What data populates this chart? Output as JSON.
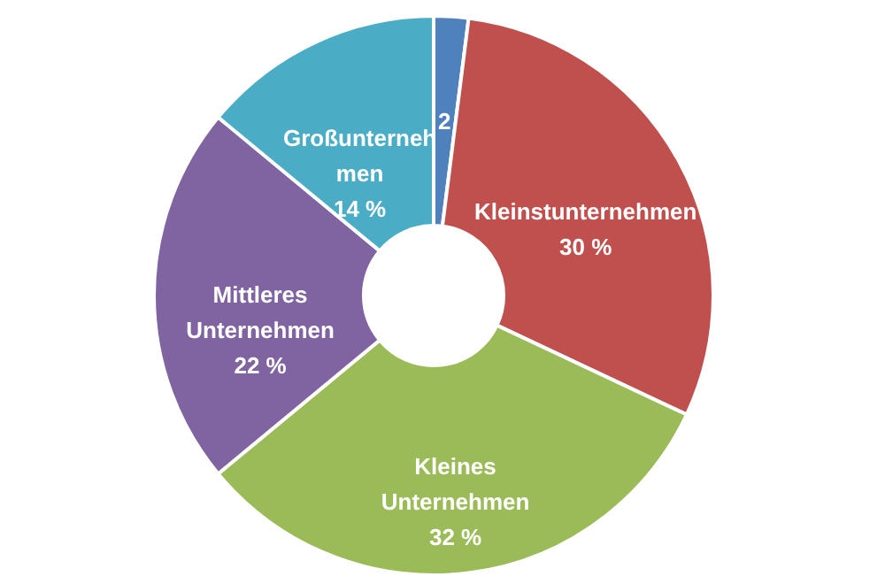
{
  "chart_data": {
    "type": "donut",
    "categories": [
      null,
      "Kleinstunternehmen",
      "Kleines Unternehmen",
      "Mittleres Unternehmen",
      "Großunternehmen"
    ],
    "values": [
      2,
      30,
      32,
      22,
      14
    ],
    "value_labels": [
      "2",
      "30 %",
      "32 %",
      "22 %",
      "14 %"
    ],
    "colors": [
      "#4f81bd",
      "#c0504d",
      "#9bbb59",
      "#8064a2",
      "#4bacc6"
    ],
    "legend": false
  }
}
